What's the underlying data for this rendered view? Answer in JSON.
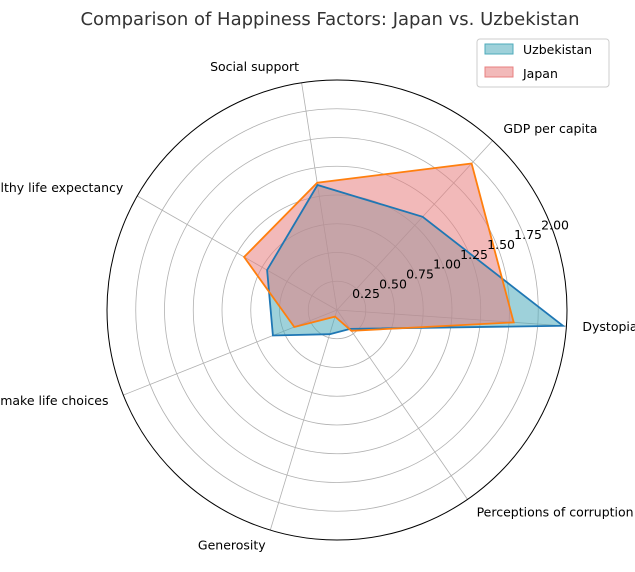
{
  "chart_data": {
    "type": "radar",
    "title": "Comparison of Happiness Factors: Japan vs. Uzbekistan",
    "axes": [
      "Dystopia",
      "GDP per capita",
      "Social support",
      "Healthy life expectancy",
      "Freedom to make life choices",
      "Generosity",
      "Perceptions of corruption"
    ],
    "rlim": [
      0,
      2.0
    ],
    "rticks": [
      0.25,
      0.5,
      0.75,
      1.0,
      1.25,
      1.5,
      1.75,
      2.0
    ],
    "rtick_labels": [
      "0.25",
      "0.50",
      "0.75",
      "1.00",
      "1.25",
      "1.50",
      "1.75",
      "2.00"
    ],
    "grid": true,
    "legend_position": "top-right",
    "series": [
      {
        "name": "Uzbekistan",
        "values": [
          1.97,
          1.1,
          1.1,
          0.7,
          0.6,
          0.22,
          0.2
        ],
        "line_color": "#1f77b4",
        "fill_color": "#4eabbb"
      },
      {
        "name": "Japan",
        "values": [
          1.54,
          1.73,
          1.12,
          0.93,
          0.4,
          0.06,
          0.22
        ],
        "line_color": "#ff7f0e",
        "fill_color": "#e88080"
      }
    ]
  }
}
